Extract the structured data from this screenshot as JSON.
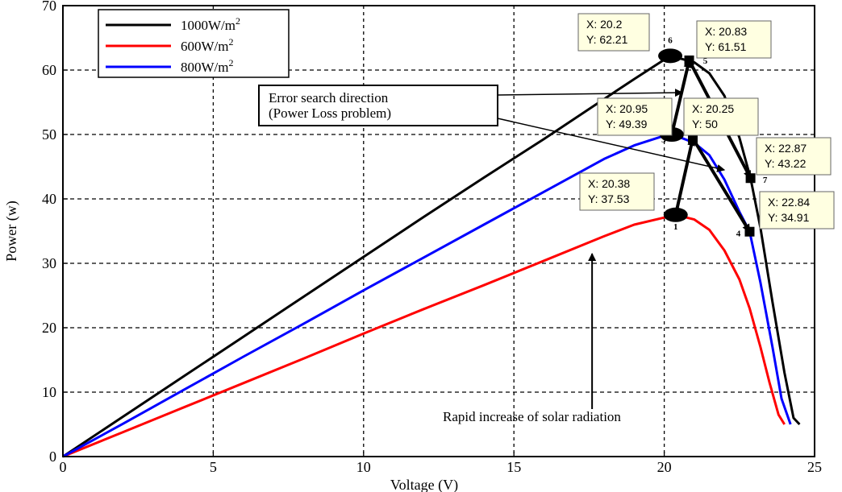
{
  "chart_data": {
    "type": "line",
    "xlabel": "Voltage (V)",
    "ylabel": "Power (w)",
    "xlim": [
      0,
      25
    ],
    "ylim": [
      0,
      70
    ],
    "xticks": [
      0,
      5,
      10,
      15,
      20,
      25
    ],
    "yticks": [
      0,
      10,
      20,
      30,
      40,
      50,
      60,
      70
    ],
    "grid": "dashed",
    "legend_position": "top-left",
    "series": [
      {
        "name": "1000W/m",
        "sup": "2",
        "color": "#000000",
        "x": [
          0,
          2,
          4,
          6,
          8,
          10,
          12,
          14,
          16,
          18,
          19,
          20.2,
          21,
          21.5,
          22,
          22.5,
          22.87,
          23.2,
          23.6,
          24,
          24.3,
          24.5
        ],
        "y": [
          0,
          6.2,
          12.4,
          18.6,
          24.8,
          31,
          37.2,
          43.3,
          49.3,
          55.5,
          58.6,
          62.21,
          61.2,
          59.5,
          56,
          49.5,
          43.22,
          35.5,
          24,
          13,
          6,
          5
        ]
      },
      {
        "name": "600W/m",
        "sup": "2",
        "color": "#ff0000",
        "x": [
          0,
          2,
          4,
          6,
          8,
          10,
          12,
          14,
          16,
          18,
          19,
          20.38,
          21,
          21.5,
          22,
          22.5,
          22.84,
          23.2,
          23.5,
          23.8,
          24
        ],
        "y": [
          0,
          3.8,
          7.6,
          11.4,
          15.2,
          19.1,
          22.9,
          26.6,
          30.4,
          34.2,
          36,
          37.53,
          36.8,
          35.2,
          32,
          27.5,
          23,
          17,
          11.5,
          6.5,
          5
        ]
      },
      {
        "name": "800W/m",
        "sup": "2",
        "color": "#0000ff",
        "x": [
          0,
          2,
          4,
          6,
          8,
          10,
          12,
          14,
          16,
          18,
          19,
          20,
          20.5,
          21,
          21.5,
          22,
          22.5,
          22.84,
          23.2,
          23.6,
          23.9,
          24.2
        ],
        "y": [
          0,
          5.1,
          10.3,
          15.5,
          20.6,
          25.8,
          30.9,
          36,
          41.1,
          46.2,
          48.3,
          49.8,
          49.6,
          48.7,
          46.8,
          43,
          38,
          34.91,
          27,
          17,
          9,
          5
        ]
      }
    ],
    "tracking_points": [
      {
        "id": "1",
        "x": 20.38,
        "y": 37.53,
        "marker": "circle",
        "label": "1"
      },
      {
        "id": "2",
        "x": 20.95,
        "y": 49.39,
        "marker": "square",
        "label": "2"
      },
      {
        "id": "3",
        "x": 20.25,
        "y": 50,
        "marker": "circle",
        "label": "3"
      },
      {
        "id": "4",
        "x": 22.84,
        "y": 34.91,
        "marker": "square",
        "label": "4"
      },
      {
        "id": "5",
        "x": 20.83,
        "y": 61.51,
        "marker": "square",
        "label": "5"
      },
      {
        "id": "6",
        "x": 20.2,
        "y": 62.21,
        "marker": "circle",
        "label": "6"
      },
      {
        "id": "7",
        "x": 22.87,
        "y": 43.22,
        "marker": "square",
        "label": "7"
      }
    ],
    "tracking_path": [
      {
        "from": "1",
        "to": "2"
      },
      {
        "from": "2",
        "to": "4"
      },
      {
        "from": "3",
        "to": "5"
      },
      {
        "from": "5",
        "to": "7"
      }
    ],
    "datatips": [
      {
        "id": "dt6",
        "x_text": "X: 20.2",
        "y_text": "Y: 62.21"
      },
      {
        "id": "dt5",
        "x_text": "X: 20.83",
        "y_text": "Y: 61.51"
      },
      {
        "id": "dt2",
        "x_text": "X: 20.95",
        "y_text": "Y: 49.39"
      },
      {
        "id": "dt3",
        "x_text": "X: 20.25",
        "y_text": "Y: 50"
      },
      {
        "id": "dt7",
        "x_text": "X: 22.87",
        "y_text": "Y: 43.22"
      },
      {
        "id": "dt1",
        "x_text": "X: 20.38",
        "y_text": "Y: 37.53"
      },
      {
        "id": "dt4",
        "x_text": "X: 22.84",
        "y_text": "Y: 34.91"
      }
    ],
    "annotations": {
      "error_line1": "Error search direction",
      "error_line2": "(Power Loss problem)",
      "rapid": "Rapid increase of solar radiation"
    }
  }
}
